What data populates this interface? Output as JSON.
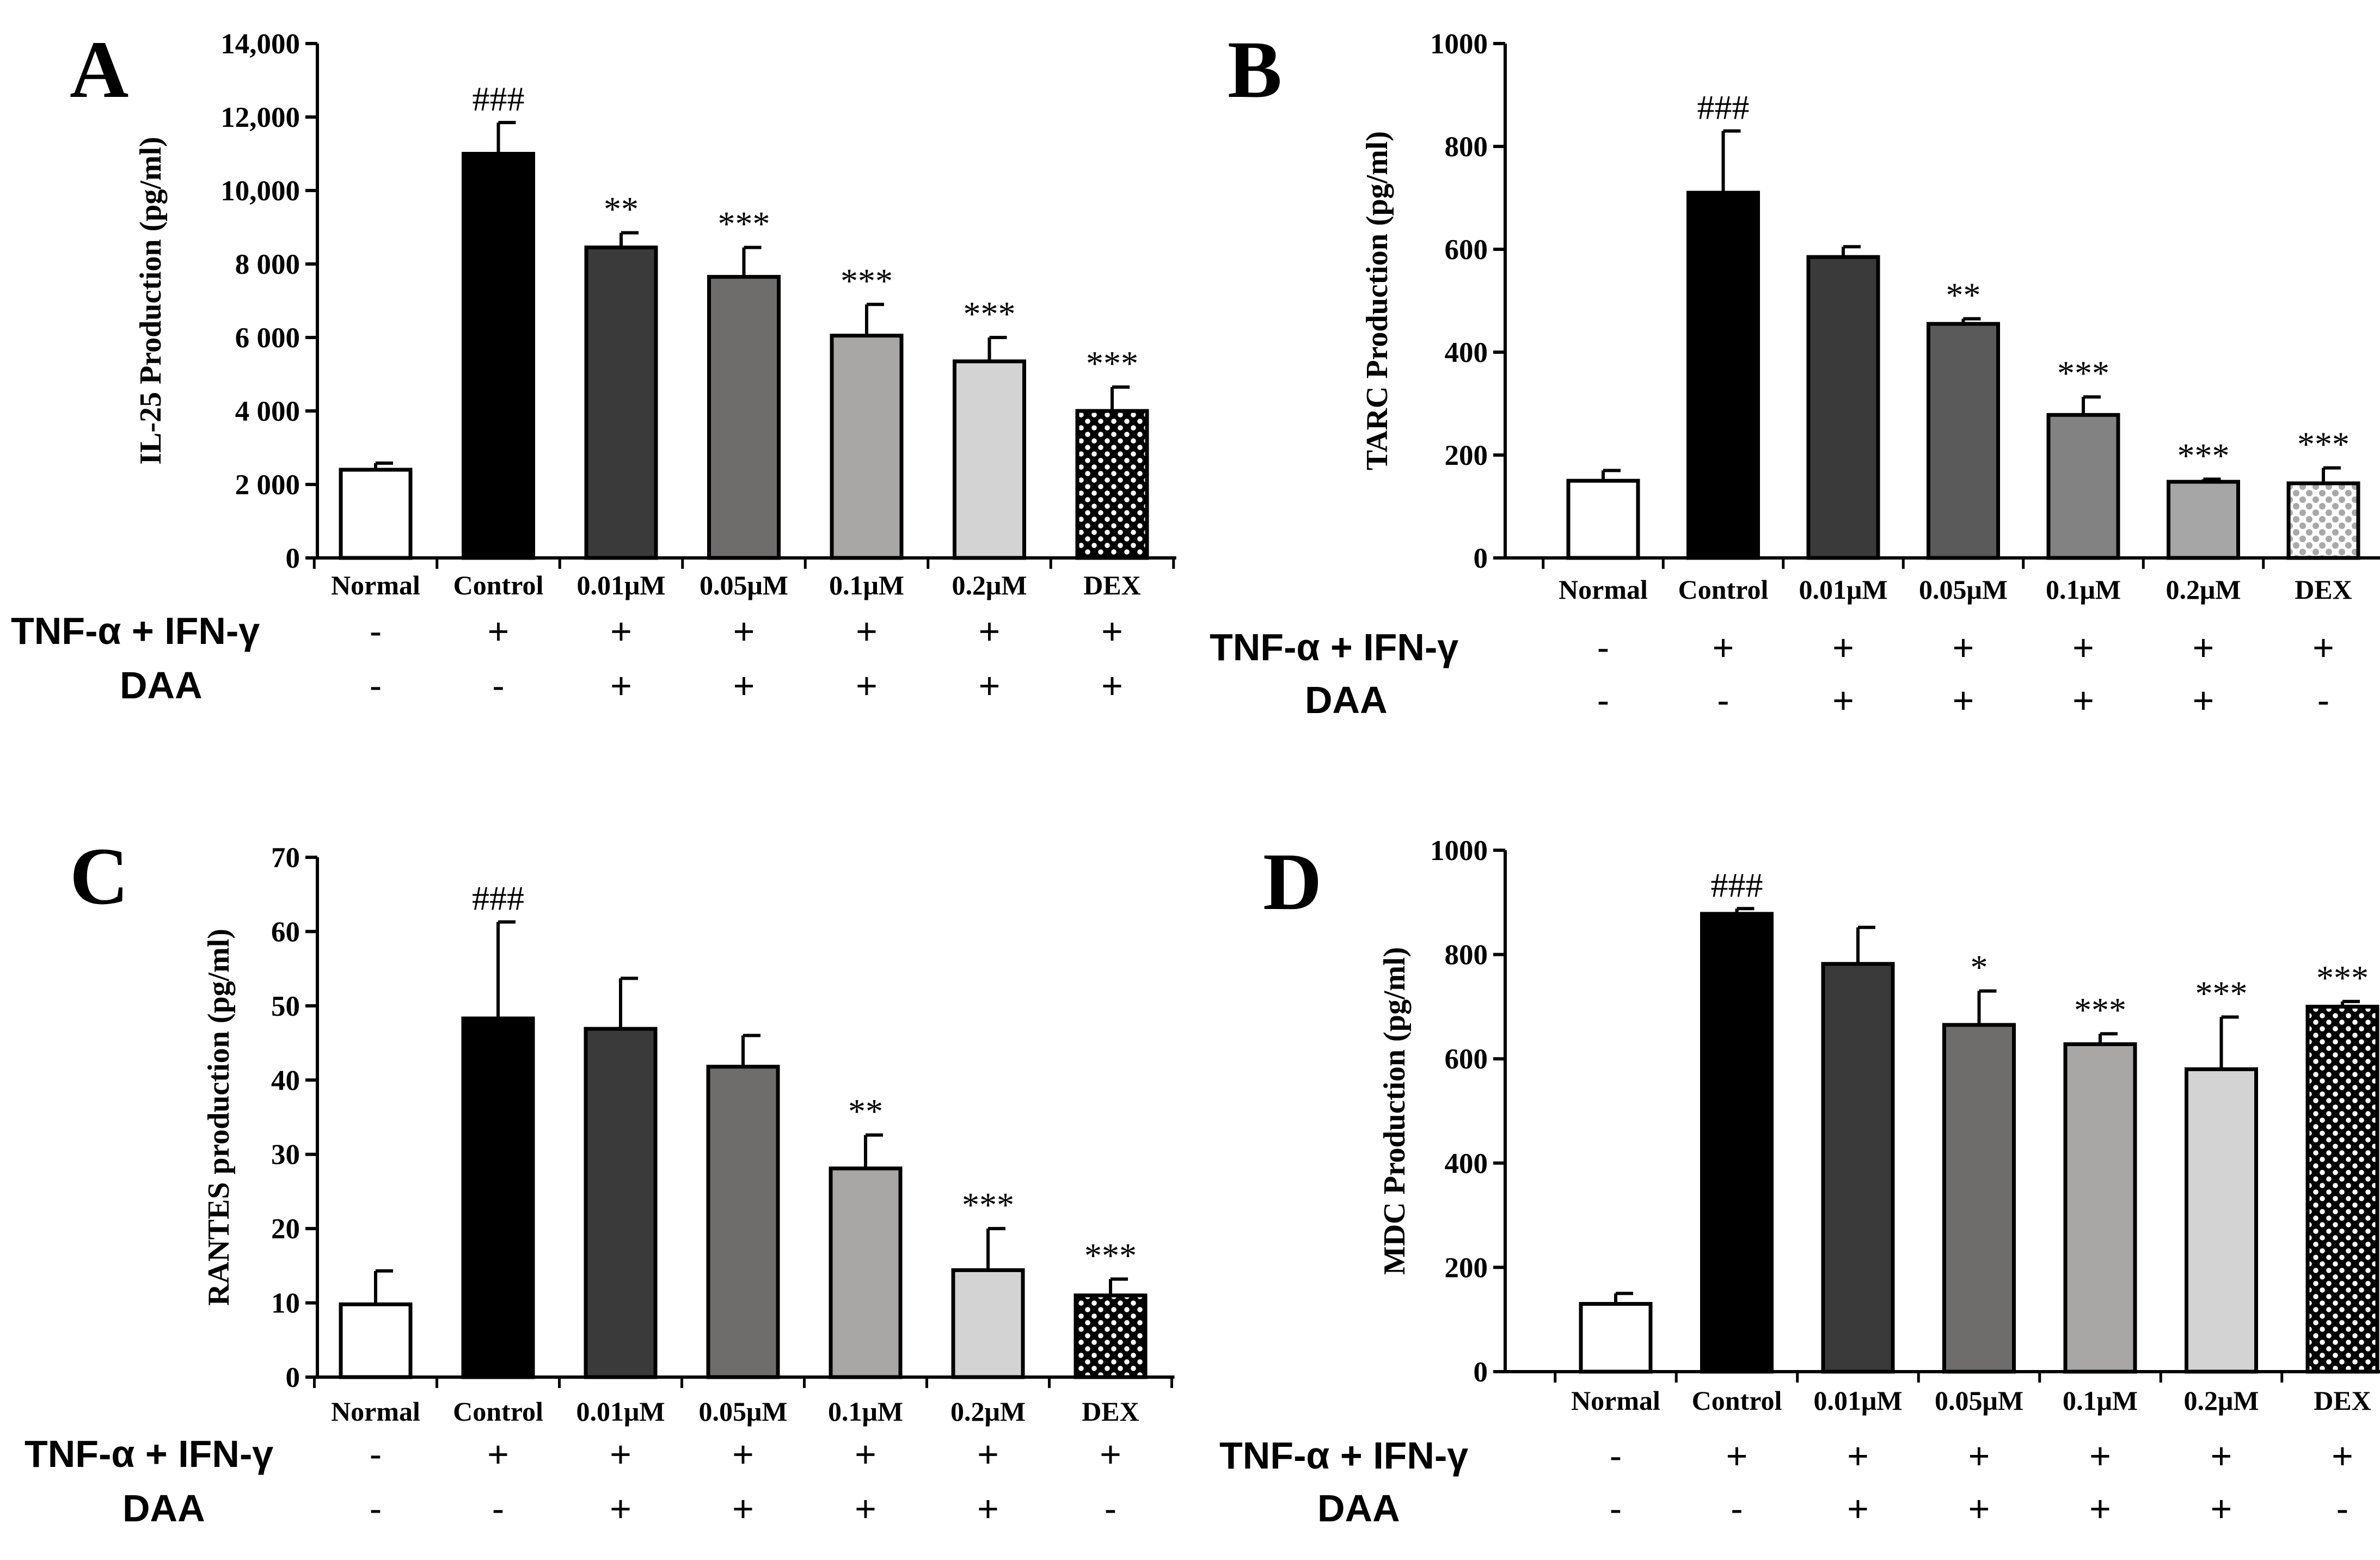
{
  "treatment_labels": {
    "tnf": "TNF-α + IFN-γ",
    "daa": "DAA"
  },
  "chart_data": [
    {
      "panel": "A",
      "type": "bar",
      "ylabel": "IL-25 Production (pg/ml)",
      "ylim": [
        0,
        14000
      ],
      "yticks": [
        0,
        2000,
        4000,
        6000,
        8000,
        10000,
        12000,
        14000
      ],
      "ytick_labels": [
        "0",
        "2 000",
        "4 000",
        "6 000",
        "8 000",
        "10,000",
        "12,000",
        "14,000"
      ],
      "categories": [
        "Normal",
        "Control",
        "0.01μM",
        "0.05μM",
        "0.1μM",
        "0.2μM",
        "DEX"
      ],
      "values": [
        2400,
        11000,
        8450,
        7650,
        6050,
        5350,
        4000
      ],
      "errors": [
        180,
        850,
        400,
        800,
        850,
        650,
        650
      ],
      "significance": [
        "",
        "###",
        "**",
        "***",
        "***",
        "***",
        "***"
      ],
      "fills": [
        "#ffffff",
        "#000000",
        "#3a3a3a",
        "#6f6d6b",
        "#a9a7a5",
        "#d3d3d3",
        "pattern"
      ],
      "tnf_ifn": [
        "-",
        "+",
        "+",
        "+",
        "+",
        "+",
        "+"
      ],
      "daa": [
        "-",
        "-",
        "+",
        "+",
        "+",
        "+",
        "+"
      ]
    },
    {
      "panel": "B",
      "type": "bar",
      "ylabel": "TARC Production (pg/ml)",
      "ylim": [
        0,
        1000
      ],
      "yticks": [
        0,
        200,
        400,
        600,
        800,
        1000
      ],
      "ytick_labels": [
        "0",
        "200",
        "400",
        "600",
        "800",
        "1000"
      ],
      "categories": [
        "Normal",
        "Control",
        "0.01μM",
        "0.05μM",
        "0.1μM",
        "0.2μM",
        "DEX"
      ],
      "values": [
        150,
        710,
        585,
        455,
        278,
        148,
        145
      ],
      "errors": [
        20,
        120,
        20,
        10,
        35,
        5,
        30
      ],
      "significance": [
        "",
        "###",
        "",
        "**",
        "***",
        "***",
        "***"
      ],
      "fills": [
        "#ffffff",
        "#000000",
        "#3a3a3a",
        "#5a5a5a",
        "#828282",
        "#a6a6a6",
        "pattern-light"
      ],
      "tnf_ifn": [
        "-",
        "+",
        "+",
        "+",
        "+",
        "+",
        "+"
      ],
      "daa": [
        "-",
        "-",
        "+",
        "+",
        "+",
        "+",
        "-"
      ]
    },
    {
      "panel": "C",
      "type": "bar",
      "ylabel": "RANTES production (pg/ml)",
      "ylim": [
        0,
        70
      ],
      "yticks": [
        0,
        10,
        20,
        30,
        40,
        50,
        60,
        70
      ],
      "ytick_labels": [
        "0",
        "10",
        "20",
        "30",
        "40",
        "50",
        "60",
        "70"
      ],
      "categories": [
        "Normal",
        "Control",
        "0.01μM",
        "0.05μM",
        "0.1μM",
        "0.2μM",
        "DEX"
      ],
      "values": [
        9.8,
        48.3,
        46.9,
        41.8,
        28.1,
        14.4,
        11.0
      ],
      "errors": [
        4.5,
        13.0,
        6.8,
        4.2,
        4.5,
        5.6,
        2.2
      ],
      "significance": [
        "",
        "###",
        "",
        "",
        "**",
        "***",
        "***"
      ],
      "fills": [
        "#ffffff",
        "#000000",
        "#3a3a3a",
        "#6f6d6b",
        "#a9a7a5",
        "#d3d3d3",
        "pattern"
      ],
      "tnf_ifn": [
        "-",
        "+",
        "+",
        "+",
        "+",
        "+",
        "+"
      ],
      "daa": [
        "-",
        "-",
        "+",
        "+",
        "+",
        "+",
        "-"
      ]
    },
    {
      "panel": "D",
      "type": "bar",
      "ylabel": "MDC Production (pg/ml)",
      "ylim": [
        0,
        1000
      ],
      "yticks": [
        0,
        200,
        400,
        600,
        800,
        1000
      ],
      "ytick_labels": [
        "0",
        "200",
        "400",
        "600",
        "800",
        "1000"
      ],
      "categories": [
        "Normal",
        "Control",
        "0.01μM",
        "0.05μM",
        "0.1μM",
        "0.2μM",
        "DEX"
      ],
      "values": [
        130,
        878,
        782,
        665,
        628,
        580,
        700
      ],
      "errors": [
        20,
        10,
        70,
        65,
        20,
        100,
        10
      ],
      "significance": [
        "",
        "###",
        "",
        "*",
        "***",
        "***",
        "***"
      ],
      "fills": [
        "#ffffff",
        "#000000",
        "#3a3a3a",
        "#6f6d6b",
        "#a9a7a5",
        "#d3d3d3",
        "pattern"
      ],
      "tnf_ifn": [
        "-",
        "+",
        "+",
        "+",
        "+",
        "+",
        "+"
      ],
      "daa": [
        "-",
        "-",
        "+",
        "+",
        "+",
        "+",
        "-"
      ]
    }
  ]
}
